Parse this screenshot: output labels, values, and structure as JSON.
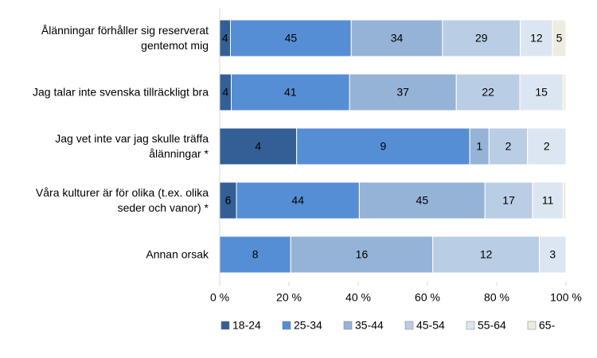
{
  "chart_data": {
    "type": "bar",
    "orientation": "horizontal",
    "stacked": "percent",
    "categories": [
      "Ålänningar förhåller sig reserverat gentemot mig",
      "Jag talar inte svenska tillräckligt bra",
      "Jag vet inte var jag skulle träffa ålänningar *",
      "Våra kulturer är för olika (t.ex. olika seder och vanor) *",
      "Annan orsak"
    ],
    "series": [
      {
        "name": "18-24",
        "color": "#335f96",
        "values": [
          4,
          4,
          4,
          6,
          0
        ]
      },
      {
        "name": "25-34",
        "color": "#558ed5",
        "values": [
          45,
          41,
          9,
          44,
          8
        ]
      },
      {
        "name": "35-44",
        "color": "#95b3d7",
        "values": [
          34,
          37,
          1,
          45,
          16
        ]
      },
      {
        "name": "45-54",
        "color": "#b9cde5",
        "values": [
          29,
          22,
          2,
          17,
          12
        ]
      },
      {
        "name": "55-64",
        "color": "#dce6f2",
        "values": [
          12,
          15,
          2,
          11,
          3
        ]
      },
      {
        "name": "65-",
        "color": "#eeece1",
        "values": [
          5,
          1,
          0,
          1,
          0
        ]
      }
    ],
    "xlim": [
      0,
      100
    ],
    "xticks": [
      {
        "value": 0,
        "label": "0 %"
      },
      {
        "value": 20,
        "label": "20 %"
      },
      {
        "value": 40,
        "label": "40 %"
      },
      {
        "value": 60,
        "label": "60 %"
      },
      {
        "value": 80,
        "label": "80 %"
      },
      {
        "value": 100,
        "label": "100 %"
      }
    ],
    "legend": "bottom"
  }
}
